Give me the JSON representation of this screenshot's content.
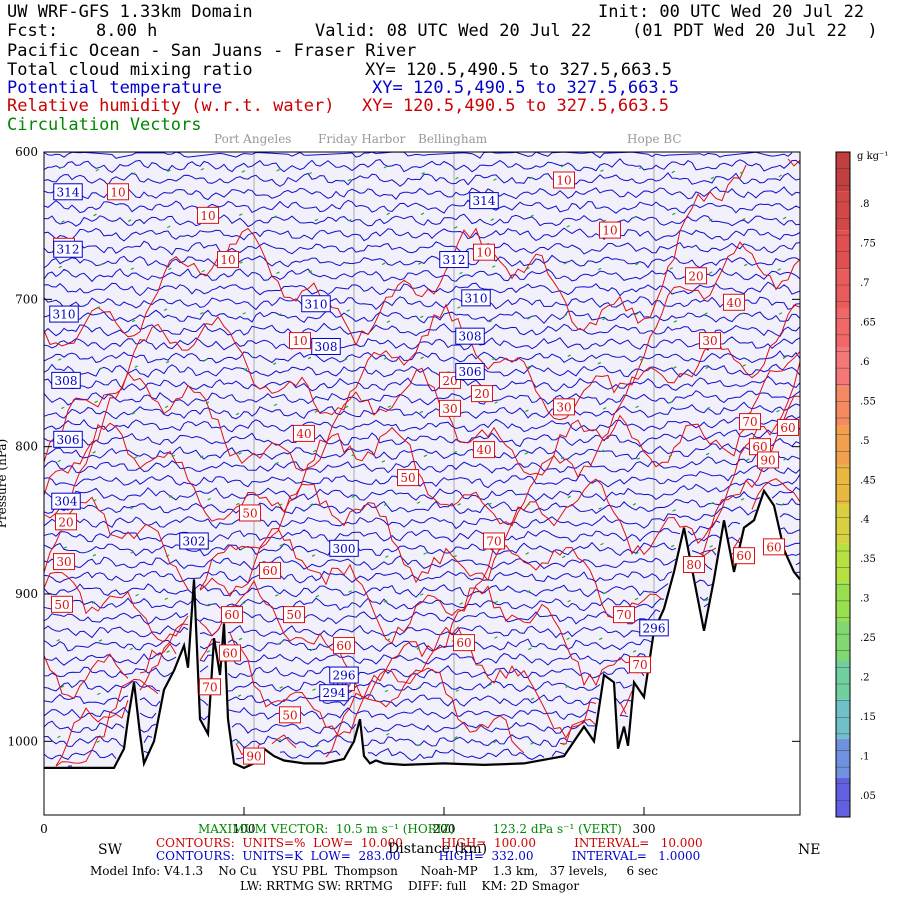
{
  "header": {
    "model_domain": "UW WRF-GFS 1.33km Domain",
    "init": "Init: 00 UTC Wed 20 Jul 22",
    "fcst_label": "Fcst:",
    "fcst_value": "8.00 h",
    "valid": "Valid: 08 UTC Wed 20 Jul 22",
    "valid_local": "(01 PDT Wed 20 Jul 22  )",
    "region": "Pacific Ocean - San Juans - Fraser River",
    "field_cloud": "Total cloud mixing ratio",
    "xy_cloud": "XY= 120.5,490.5 to 327.5,663.5",
    "field_theta": "Potential temperature",
    "xy_theta": "XY= 120.5,490.5 to 327.5,663.5",
    "field_rh": "Relative humidity (w.r.t. water)",
    "xy_rh": "XY= 120.5,490.5 to 327.5,663.5",
    "field_vectors": "Circulation Vectors"
  },
  "locations": [
    "Port Angeles",
    "Friday Harbor",
    "Bellingham",
    "Hope BC"
  ],
  "direction_labels": {
    "left": "SW",
    "right": "NE"
  },
  "colorbar": {
    "unit": "g kg⁻¹",
    "ticks": [
      ".8",
      ".75",
      ".7",
      ".65",
      ".6",
      ".55",
      ".5",
      ".45",
      ".4",
      ".35",
      ".3",
      ".25",
      ".2",
      ".15",
      ".1",
      ".05"
    ],
    "colors": [
      "#c04040",
      "#d24848",
      "#e05050",
      "#ea5c5c",
      "#f06868",
      "#f47878",
      "#f58a60",
      "#f2a050",
      "#e8b840",
      "#d8d040",
      "#b8e040",
      "#98e050",
      "#80d870",
      "#70d0a0",
      "#70c0c8",
      "#7090e0",
      "#6060e0"
    ]
  },
  "footer": {
    "max_vector": "MAXIMUM VECTOR:  10.5 m s⁻¹ (HORIZ)          123.2 dPa s⁻¹ (VERT)",
    "contours_rh": "CONTOURS:  UNITS=%  LOW=  10.000          HIGH=  100.00          INTERVAL=   10.000",
    "contours_theta": "CONTOURS:  UNITS=K  LOW=  283.00          HIGH=  332.00          INTERVAL=   1.0000",
    "xlabel": "Distance (km)",
    "model_info": "Model Info: V4.1.3    No Cu    YSU PBL  Thompson      Noah-MP    1.3 km,   37 levels,     6 sec",
    "model_info2": "LW: RRTMG SW: RRTMG    DIFF: full    KM: 2D Smagor"
  },
  "chart_data": {
    "type": "cross-section",
    "xlabel": "Distance (km)",
    "ylabel": "Pressure (hPa)",
    "xlim": [
      0,
      378
    ],
    "ylim": [
      1050,
      600
    ],
    "x_ticks": [
      0,
      100,
      200,
      300
    ],
    "y_ticks": [
      600,
      700,
      800,
      900,
      1000
    ],
    "location_lines_km": [
      105,
      155,
      205,
      305
    ],
    "terrain": {
      "x": [
        0,
        20,
        35,
        40,
        42,
        45,
        48,
        50,
        55,
        60,
        65,
        70,
        72,
        75,
        78,
        82,
        85,
        88,
        90,
        92,
        95,
        100,
        105,
        110,
        115,
        120,
        130,
        140,
        150,
        155,
        158,
        160,
        163,
        166,
        170,
        180,
        200,
        220,
        240,
        260,
        270,
        275,
        280,
        285,
        287,
        290,
        292,
        295,
        300,
        305,
        310,
        315,
        320,
        325,
        330,
        335,
        340,
        345,
        350,
        355,
        360,
        365,
        370,
        375,
        378
      ],
      "p": [
        1018,
        1018,
        1018,
        1005,
        985,
        960,
        995,
        1015,
        1000,
        965,
        952,
        935,
        950,
        890,
        985,
        995,
        930,
        955,
        920,
        985,
        1015,
        1018,
        1015,
        1005,
        1010,
        1013,
        1015,
        1015,
        1012,
        1000,
        985,
        1010,
        1015,
        1013,
        1015,
        1016,
        1015,
        1016,
        1015,
        1010,
        990,
        1000,
        955,
        960,
        1005,
        990,
        1003,
        960,
        970,
        925,
        910,
        885,
        855,
        890,
        925,
        890,
        850,
        885,
        855,
        850,
        830,
        840,
        870,
        885,
        890
      ]
    },
    "theta_contours": [
      {
        "label": "314",
        "x": 12,
        "p": 627
      },
      {
        "label": "314",
        "x": 220,
        "p": 633
      },
      {
        "label": "312",
        "x": 12,
        "p": 666
      },
      {
        "label": "312",
        "x": 205,
        "p": 673
      },
      {
        "label": "310",
        "x": 10,
        "p": 710
      },
      {
        "label": "310",
        "x": 136,
        "p": 703
      },
      {
        "label": "310",
        "x": 216,
        "p": 699
      },
      {
        "label": "308",
        "x": 11,
        "p": 755
      },
      {
        "label": "308",
        "x": 141,
        "p": 732
      },
      {
        "label": "308",
        "x": 213,
        "p": 725
      },
      {
        "label": "306",
        "x": 12,
        "p": 795
      },
      {
        "label": "306",
        "x": 213,
        "p": 749
      },
      {
        "label": "304",
        "x": 11,
        "p": 837
      },
      {
        "label": "302",
        "x": 75,
        "p": 864
      },
      {
        "label": "300",
        "x": 150,
        "p": 869
      },
      {
        "label": "296",
        "x": 150,
        "p": 955
      },
      {
        "label": "296",
        "x": 305,
        "p": 923
      },
      {
        "label": "294",
        "x": 145,
        "p": 967
      }
    ],
    "rh_contours": [
      {
        "label": "10",
        "x": 37,
        "p": 627
      },
      {
        "label": "10",
        "x": 82,
        "p": 643
      },
      {
        "label": "10",
        "x": 92,
        "p": 673
      },
      {
        "label": "10",
        "x": 260,
        "p": 619
      },
      {
        "label": "10",
        "x": 283,
        "p": 653
      },
      {
        "label": "10",
        "x": 220,
        "p": 668
      },
      {
        "label": "10",
        "x": 128,
        "p": 728
      },
      {
        "label": "20",
        "x": 10,
        "p": 664
      },
      {
        "label": "20",
        "x": 11,
        "p": 851
      },
      {
        "label": "20",
        "x": 203,
        "p": 755
      },
      {
        "label": "20",
        "x": 219,
        "p": 764
      },
      {
        "label": "20",
        "x": 326,
        "p": 684
      },
      {
        "label": "30",
        "x": 10,
        "p": 878
      },
      {
        "label": "30",
        "x": 203,
        "p": 774
      },
      {
        "label": "30",
        "x": 260,
        "p": 773
      },
      {
        "label": "30",
        "x": 333,
        "p": 728
      },
      {
        "label": "40",
        "x": 130,
        "p": 791
      },
      {
        "label": "40",
        "x": 220,
        "p": 802
      },
      {
        "label": "40",
        "x": 345,
        "p": 702
      },
      {
        "label": "50",
        "x": 9,
        "p": 907
      },
      {
        "label": "50",
        "x": 182,
        "p": 821
      },
      {
        "label": "50",
        "x": 103,
        "p": 845
      },
      {
        "label": "50",
        "x": 125,
        "p": 914
      },
      {
        "label": "50",
        "x": 123,
        "p": 982
      },
      {
        "label": "60",
        "x": 113,
        "p": 884
      },
      {
        "label": "60",
        "x": 94,
        "p": 914
      },
      {
        "label": "60",
        "x": 93,
        "p": 940
      },
      {
        "label": "60",
        "x": 150,
        "p": 935
      },
      {
        "label": "60",
        "x": 210,
        "p": 933
      },
      {
        "label": "60",
        "x": 350,
        "p": 874
      },
      {
        "label": "60",
        "x": 358,
        "p": 800
      },
      {
        "label": "60",
        "x": 372,
        "p": 787
      },
      {
        "label": "60",
        "x": 365,
        "p": 868
      },
      {
        "label": "60",
        "x": 150,
        "p": 960
      },
      {
        "label": "70",
        "x": 225,
        "p": 864
      },
      {
        "label": "70",
        "x": 290,
        "p": 914
      },
      {
        "label": "70",
        "x": 298,
        "p": 948
      },
      {
        "label": "70",
        "x": 83,
        "p": 963
      },
      {
        "label": "70",
        "x": 353,
        "p": 783
      },
      {
        "label": "80",
        "x": 325,
        "p": 880
      },
      {
        "label": "90",
        "x": 105,
        "p": 1010
      },
      {
        "label": "90",
        "x": 362,
        "p": 809
      }
    ]
  }
}
